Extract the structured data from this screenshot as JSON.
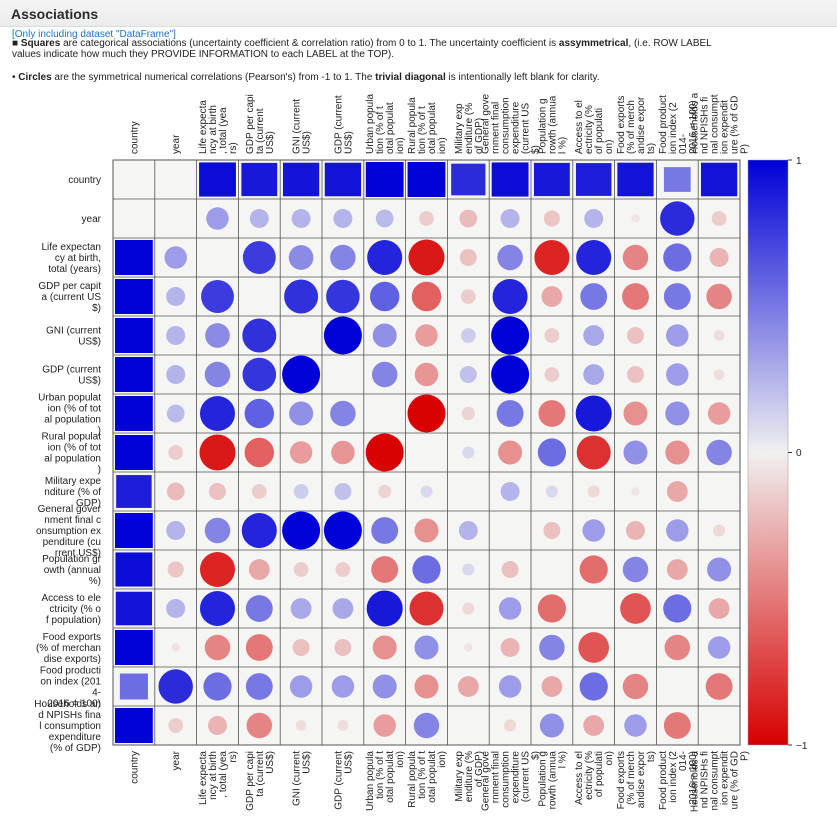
{
  "header": {
    "title": "Associations",
    "dataset_note": "[Only including dataset \"DataFrame\"]",
    "desc1": {
      "bullet": "■",
      "b1": "Squares",
      "t1": " are categorical associations (uncertainty coefficient & correlation ratio) from 0 to 1. The uncertainty coefficient is ",
      "b2": "assymmetrical",
      "t2": ", (i.e. ROW LABEL values indicate how much they PROVIDE INFORMATION to each LABEL at the TOP)."
    },
    "desc2": {
      "bullet": "•",
      "b1": "Circles",
      "t1": " are the symmetrical numerical correlations (Pearson's) from -1 to 1. The ",
      "b2": "trivial diagonal",
      "t2": " is intentionally left blank for clarity."
    }
  },
  "colors": {
    "positive": "#0000d8",
    "neutral": "#f0f0f0",
    "negative": "#d80000"
  },
  "chart_data": {
    "type": "heatmap",
    "colorbar": {
      "min": -1,
      "max": 1,
      "ticks": [
        "1",
        "0",
        "−1"
      ]
    },
    "row_labels": [
      [
        "country"
      ],
      [
        "year"
      ],
      [
        "Life expectan",
        "cy at birth,",
        "total (years)"
      ],
      [
        "GDP per capit",
        "a (current US",
        "$)"
      ],
      [
        "GNI (current",
        "US$)"
      ],
      [
        "GDP (current",
        "US$)"
      ],
      [
        "Urban populat",
        "ion (% of tot",
        "al population",
        ")"
      ],
      [
        "Rural populat",
        "ion (% of tot",
        "al population",
        ")"
      ],
      [
        "Military expe",
        "nditure (% of",
        "GDP)"
      ],
      [
        "General gover",
        "nment final c",
        "onsumption ex",
        "penditure (cu",
        "rrent US$)"
      ],
      [
        "Population gr",
        "owth (annual",
        "%)"
      ],
      [
        "Access to ele",
        "ctricity (% o",
        "f population)"
      ],
      [
        "Food exports",
        "(% of merchan",
        "dise exports)"
      ],
      [
        "Food producti",
        "on index (201",
        "4-",
        "2016 = 100)"
      ],
      [
        "Households an",
        "d NPISHs fina",
        "l consumption",
        "expenditure",
        "(% of GDP)"
      ]
    ],
    "col_labels": [
      [
        "country"
      ],
      [
        "year"
      ],
      [
        "Life expecta",
        "ncy at birth",
        ", total (yea",
        "rs)"
      ],
      [
        "GDP per capi",
        "ta (current",
        "US$)"
      ],
      [
        "GNI (current",
        "US$)"
      ],
      [
        "GDP (current",
        "US$)"
      ],
      [
        "Urban popula",
        "tion (% of t",
        "otal populat",
        "ion)"
      ],
      [
        "Rural popula",
        "tion (% of t",
        "otal populat",
        "ion)"
      ],
      [
        "Military exp",
        "enditure (%",
        "of GDP)"
      ],
      [
        "General gove",
        "rnment final",
        "consumption",
        "expenditure",
        "(current US",
        "$)"
      ],
      [
        "Population g",
        "rowth (annua",
        "l %)"
      ],
      [
        "Access to el",
        "ectricity (%",
        "of populati",
        "on)"
      ],
      [
        "Food exports",
        "(% of merch",
        "andise expor",
        "ts)"
      ],
      [
        "Food product",
        "ion index (2",
        "014-",
        "2016 = 100)"
      ],
      [
        "Households a",
        "nd NPISHs fi",
        "nal consumpt",
        "ion expendit",
        "ure (% of GD",
        "P)"
      ]
    ],
    "square_cells": [
      [
        0,
        2,
        0.95
      ],
      [
        0,
        3,
        0.9
      ],
      [
        0,
        4,
        0.92
      ],
      [
        0,
        5,
        0.92
      ],
      [
        0,
        6,
        1.0
      ],
      [
        0,
        7,
        1.0
      ],
      [
        0,
        8,
        0.82
      ],
      [
        0,
        9,
        0.95
      ],
      [
        0,
        10,
        0.9
      ],
      [
        0,
        11,
        0.88
      ],
      [
        0,
        12,
        0.92
      ],
      [
        0,
        13,
        0.5
      ],
      [
        0,
        14,
        0.92
      ],
      [
        2,
        0,
        1.0
      ],
      [
        3,
        0,
        1.0
      ],
      [
        4,
        0,
        1.0
      ],
      [
        5,
        0,
        1.0
      ],
      [
        6,
        0,
        1.0
      ],
      [
        7,
        0,
        1.0
      ],
      [
        8,
        0,
        0.88
      ],
      [
        9,
        0,
        1.0
      ],
      [
        10,
        0,
        0.95
      ],
      [
        11,
        0,
        0.92
      ],
      [
        12,
        0,
        1.0
      ],
      [
        13,
        0,
        0.55
      ],
      [
        14,
        0,
        1.0
      ]
    ],
    "circle_values": [
      [
        null,
        null,
        null,
        null,
        null,
        null,
        null,
        null,
        null,
        null,
        null,
        null,
        null,
        null,
        null
      ],
      [
        null,
        null,
        0.35,
        0.25,
        0.25,
        0.25,
        0.22,
        -0.15,
        -0.22,
        0.25,
        -0.18,
        0.25,
        -0.05,
        0.82,
        -0.15
      ],
      [
        null,
        0.35,
        null,
        0.75,
        0.42,
        0.45,
        0.85,
        -0.9,
        -0.2,
        0.45,
        -0.85,
        0.85,
        -0.45,
        0.55,
        -0.25
      ],
      [
        null,
        0.25,
        0.75,
        null,
        0.8,
        0.78,
        0.6,
        -0.6,
        -0.15,
        0.85,
        -0.3,
        0.5,
        -0.5,
        0.5,
        -0.45
      ],
      [
        null,
        0.25,
        0.42,
        0.8,
        null,
        1.0,
        0.4,
        -0.35,
        0.15,
        1.0,
        -0.15,
        0.3,
        -0.2,
        0.35,
        -0.08
      ],
      [
        null,
        0.25,
        0.45,
        0.78,
        1.0,
        null,
        0.45,
        -0.38,
        0.2,
        1.0,
        -0.15,
        0.3,
        -0.2,
        0.35,
        -0.08
      ],
      [
        null,
        0.22,
        0.85,
        0.6,
        0.4,
        0.45,
        null,
        -1.0,
        -0.12,
        0.5,
        -0.5,
        0.9,
        -0.4,
        0.4,
        -0.35
      ],
      [
        null,
        -0.15,
        -0.9,
        -0.6,
        -0.35,
        -0.38,
        -1.0,
        null,
        0.1,
        -0.4,
        0.55,
        -0.8,
        0.4,
        -0.4,
        0.45
      ],
      [
        null,
        -0.22,
        -0.2,
        -0.15,
        0.15,
        0.2,
        -0.12,
        0.1,
        null,
        0.25,
        0.1,
        -0.1,
        -0.05,
        -0.3,
        null
      ],
      [
        null,
        0.25,
        0.45,
        0.85,
        1.0,
        1.0,
        0.5,
        -0.4,
        0.25,
        null,
        -0.2,
        0.35,
        -0.25,
        0.35,
        -0.1
      ],
      [
        null,
        -0.18,
        -0.85,
        -0.3,
        -0.15,
        -0.15,
        -0.5,
        0.55,
        0.1,
        -0.2,
        null,
        -0.55,
        0.45,
        -0.3,
        0.4
      ],
      [
        null,
        0.25,
        0.85,
        0.5,
        0.3,
        0.3,
        0.9,
        -0.8,
        -0.1,
        0.35,
        -0.55,
        null,
        -0.65,
        0.55,
        -0.3
      ],
      [
        null,
        -0.05,
        -0.45,
        -0.5,
        -0.2,
        -0.2,
        -0.4,
        0.4,
        -0.05,
        -0.25,
        0.45,
        -0.65,
        null,
        -0.45,
        0.35
      ],
      [
        null,
        0.82,
        0.55,
        0.5,
        0.35,
        0.35,
        0.4,
        -0.4,
        -0.3,
        0.35,
        -0.3,
        0.55,
        -0.45,
        null,
        -0.5
      ],
      [
        null,
        -0.15,
        -0.25,
        -0.45,
        -0.08,
        -0.08,
        -0.35,
        0.45,
        null,
        -0.1,
        0.4,
        -0.3,
        0.35,
        -0.5,
        null
      ]
    ]
  }
}
